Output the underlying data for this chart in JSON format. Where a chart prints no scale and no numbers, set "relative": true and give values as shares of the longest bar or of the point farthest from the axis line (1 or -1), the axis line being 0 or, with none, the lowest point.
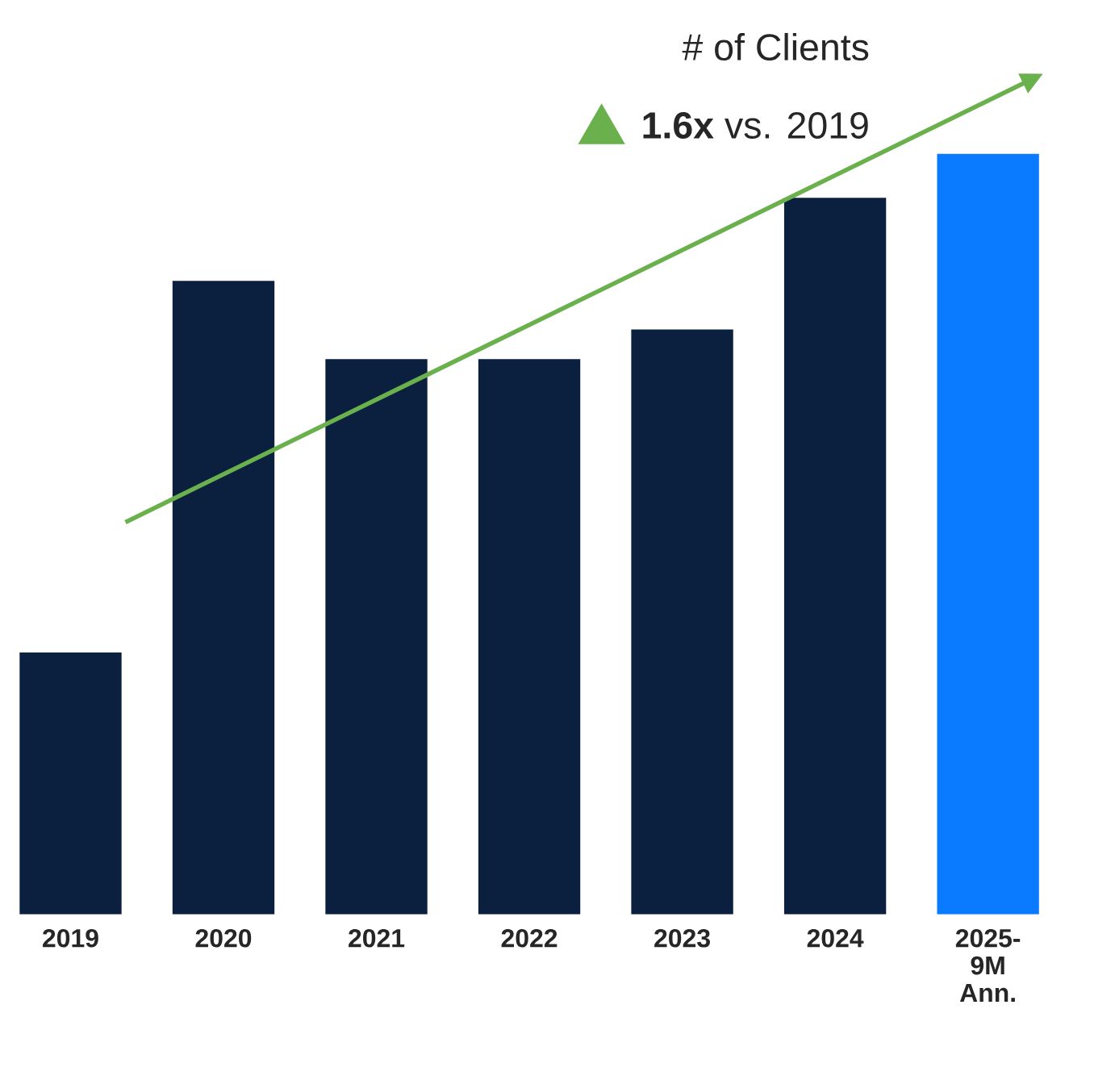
{
  "chart_data": {
    "type": "bar",
    "title": "# of Clients",
    "relative": true,
    "categories": [
      "2019",
      "2020",
      "2021",
      "2022",
      "2023",
      "2024",
      "2025-9M Ann."
    ],
    "values": [
      0.344,
      0.833,
      0.73,
      0.73,
      0.769,
      0.942,
      1
    ],
    "colors": [
      "#0b1f3e",
      "#0b1f3e",
      "#0b1f3e",
      "#0b1f3e",
      "#0b1f3e",
      "#0b1f3e",
      "#0a7bff"
    ],
    "annotations": [
      "**1.6x** vs. 2019"
    ]
  }
}
